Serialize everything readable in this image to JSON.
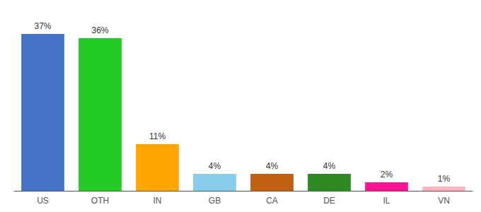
{
  "chart_data": {
    "type": "bar",
    "categories": [
      "US",
      "OTH",
      "IN",
      "GB",
      "CA",
      "DE",
      "IL",
      "VN"
    ],
    "values": [
      37,
      36,
      11,
      4,
      4,
      4,
      2,
      1
    ],
    "value_labels": [
      "37%",
      "36%",
      "11%",
      "4%",
      "4%",
      "4%",
      "2%",
      "1%"
    ],
    "colors": [
      "#4472C4",
      "#22CC22",
      "#FFA500",
      "#87CEEB",
      "#C06010",
      "#2E8B22",
      "#FF1493",
      "#FFB6C1"
    ],
    "ylim": [
      0,
      40
    ],
    "data_labels": true,
    "tick_labels": "x",
    "grid": false
  }
}
